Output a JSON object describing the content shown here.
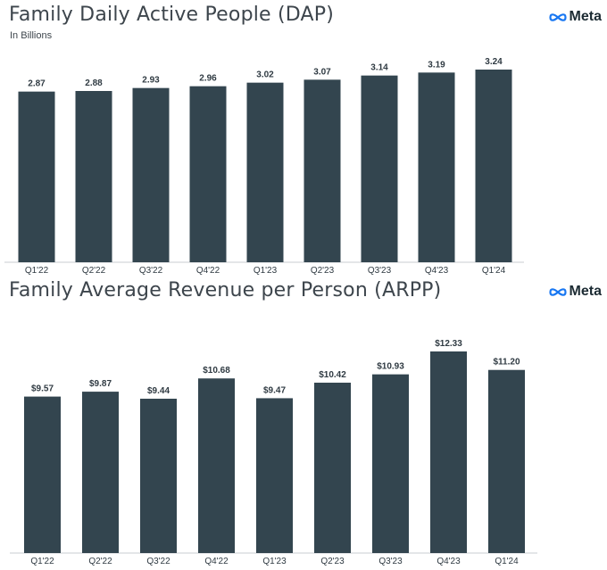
{
  "brand": {
    "name": "Meta",
    "logo_icon": "meta-infinity-logo",
    "color": "#1877f2"
  },
  "colors": {
    "bar": "#33454f",
    "label": "#2f3a42",
    "axis": "#c9cdd0"
  },
  "chart_data": [
    {
      "type": "bar",
      "title": "Family Daily Active People (DAP)",
      "subtitle": "In Billions",
      "categories": [
        "Q1'22",
        "Q2'22",
        "Q3'22",
        "Q4'22",
        "Q1'23",
        "Q2'23",
        "Q3'23",
        "Q4'23",
        "Q1'24"
      ],
      "values": [
        2.87,
        2.88,
        2.93,
        2.96,
        3.02,
        3.07,
        3.14,
        3.19,
        3.24
      ],
      "value_labels": [
        "2.87",
        "2.88",
        "2.93",
        "2.96",
        "3.02",
        "3.07",
        "3.14",
        "3.19",
        "3.24"
      ],
      "ylim": [
        0,
        3.24
      ],
      "grid": false,
      "legend": "none"
    },
    {
      "type": "bar",
      "title": "Family Average Revenue per Person (ARPP)",
      "categories": [
        "Q1'22",
        "Q2'22",
        "Q3'22",
        "Q4'22",
        "Q1'23",
        "Q2'23",
        "Q3'23",
        "Q4'23",
        "Q1'24"
      ],
      "values": [
        9.57,
        9.87,
        9.44,
        10.68,
        9.47,
        10.42,
        10.93,
        12.33,
        11.2
      ],
      "value_labels": [
        "$9.57",
        "$9.87",
        "$9.44",
        "$10.68",
        "$9.47",
        "$10.42",
        "$10.93",
        "$12.33",
        "$11.20"
      ],
      "ylim": [
        0,
        12.33
      ],
      "grid": false,
      "legend": "none"
    }
  ]
}
